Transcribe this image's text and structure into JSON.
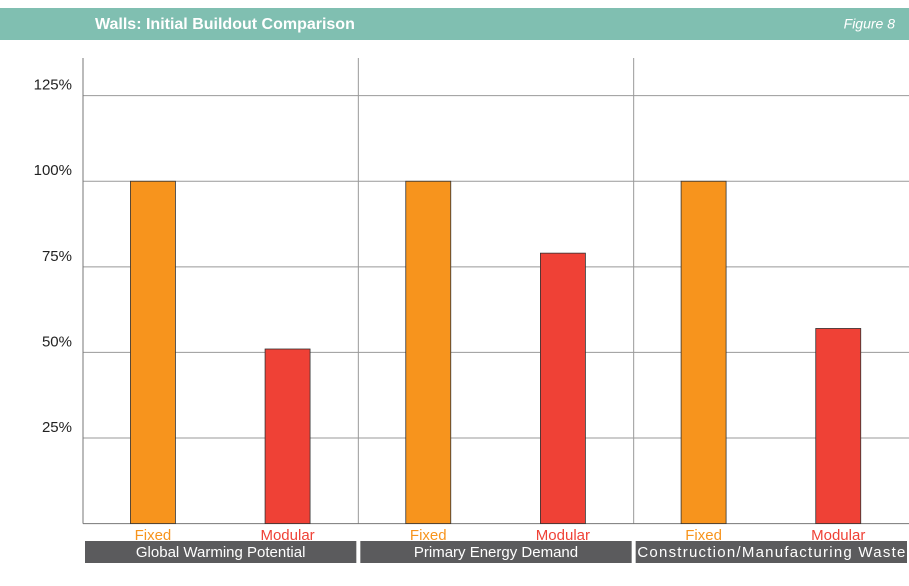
{
  "chart_data": {
    "type": "bar",
    "title": "Walls: Initial Buildout Comparison",
    "subtitle": "Figure 8",
    "categories": [
      "Global Warming Potential",
      "Primary Energy Demand",
      "Construction/Manufacturing Waste"
    ],
    "series": [
      {
        "name": "Fixed",
        "color": "#f7941d",
        "values": [
          100,
          100,
          100
        ]
      },
      {
        "name": "Modular",
        "color": "#ef4136",
        "values": [
          51,
          79,
          57
        ]
      }
    ],
    "ylim": [
      0,
      136
    ],
    "yticks": [
      {
        "value": 25,
        "label": "25%"
      },
      {
        "value": 50,
        "label": "50%"
      },
      {
        "value": 75,
        "label": "75%"
      },
      {
        "value": 100,
        "label": "100%"
      },
      {
        "value": 125,
        "label": "125%"
      }
    ],
    "grid": true
  }
}
